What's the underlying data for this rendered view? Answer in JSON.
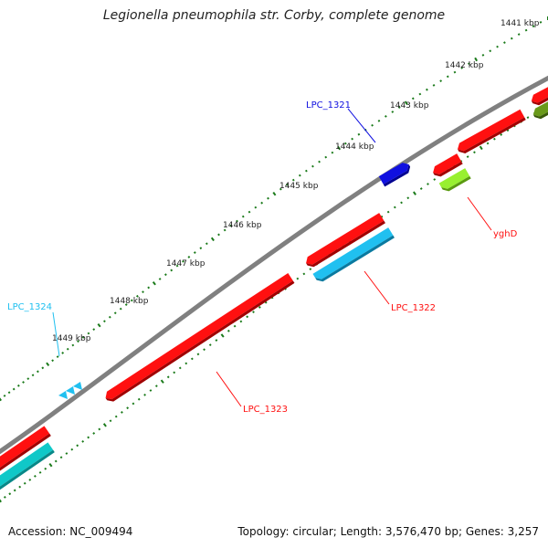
{
  "title": "Legionella pneumophila str. Corby, complete genome",
  "footer": {
    "accession": "Accession: NC_009494",
    "summary": "Topology: circular; Length: 3,576,470 bp; Genes: 3,257"
  },
  "colors": {
    "backbone": "#808080",
    "ticks": "#1a7a1a",
    "red": "#ff1010",
    "blue": "#1010e0",
    "cyan": "#20c0f0",
    "teal": "#10c8c8",
    "lime": "#98f030",
    "olive": "#6a9a1a"
  },
  "scale": {
    "ticks": [
      {
        "label": "1441 kbp"
      },
      {
        "label": "1442 kbp"
      },
      {
        "label": "1443 kbp"
      },
      {
        "label": "1444 kbp"
      },
      {
        "label": "1445 kbp"
      },
      {
        "label": "1446 kbp"
      },
      {
        "label": "1447 kbp"
      },
      {
        "label": "1448 kbp"
      },
      {
        "label": "1449 kbp"
      }
    ]
  },
  "genes": {
    "lpc_1321": {
      "label": "LPC_1321",
      "color": "#1010e0"
    },
    "lpc_1322": {
      "label": "LPC_1322",
      "color": "#ff1010"
    },
    "lpc_1323": {
      "label": "LPC_1323",
      "color": "#ff1010"
    },
    "lpc_1324": {
      "label": "LPC_1324",
      "color": "#20c0f0"
    },
    "yghd": {
      "label": "yghD",
      "color": "#ff1010"
    }
  }
}
